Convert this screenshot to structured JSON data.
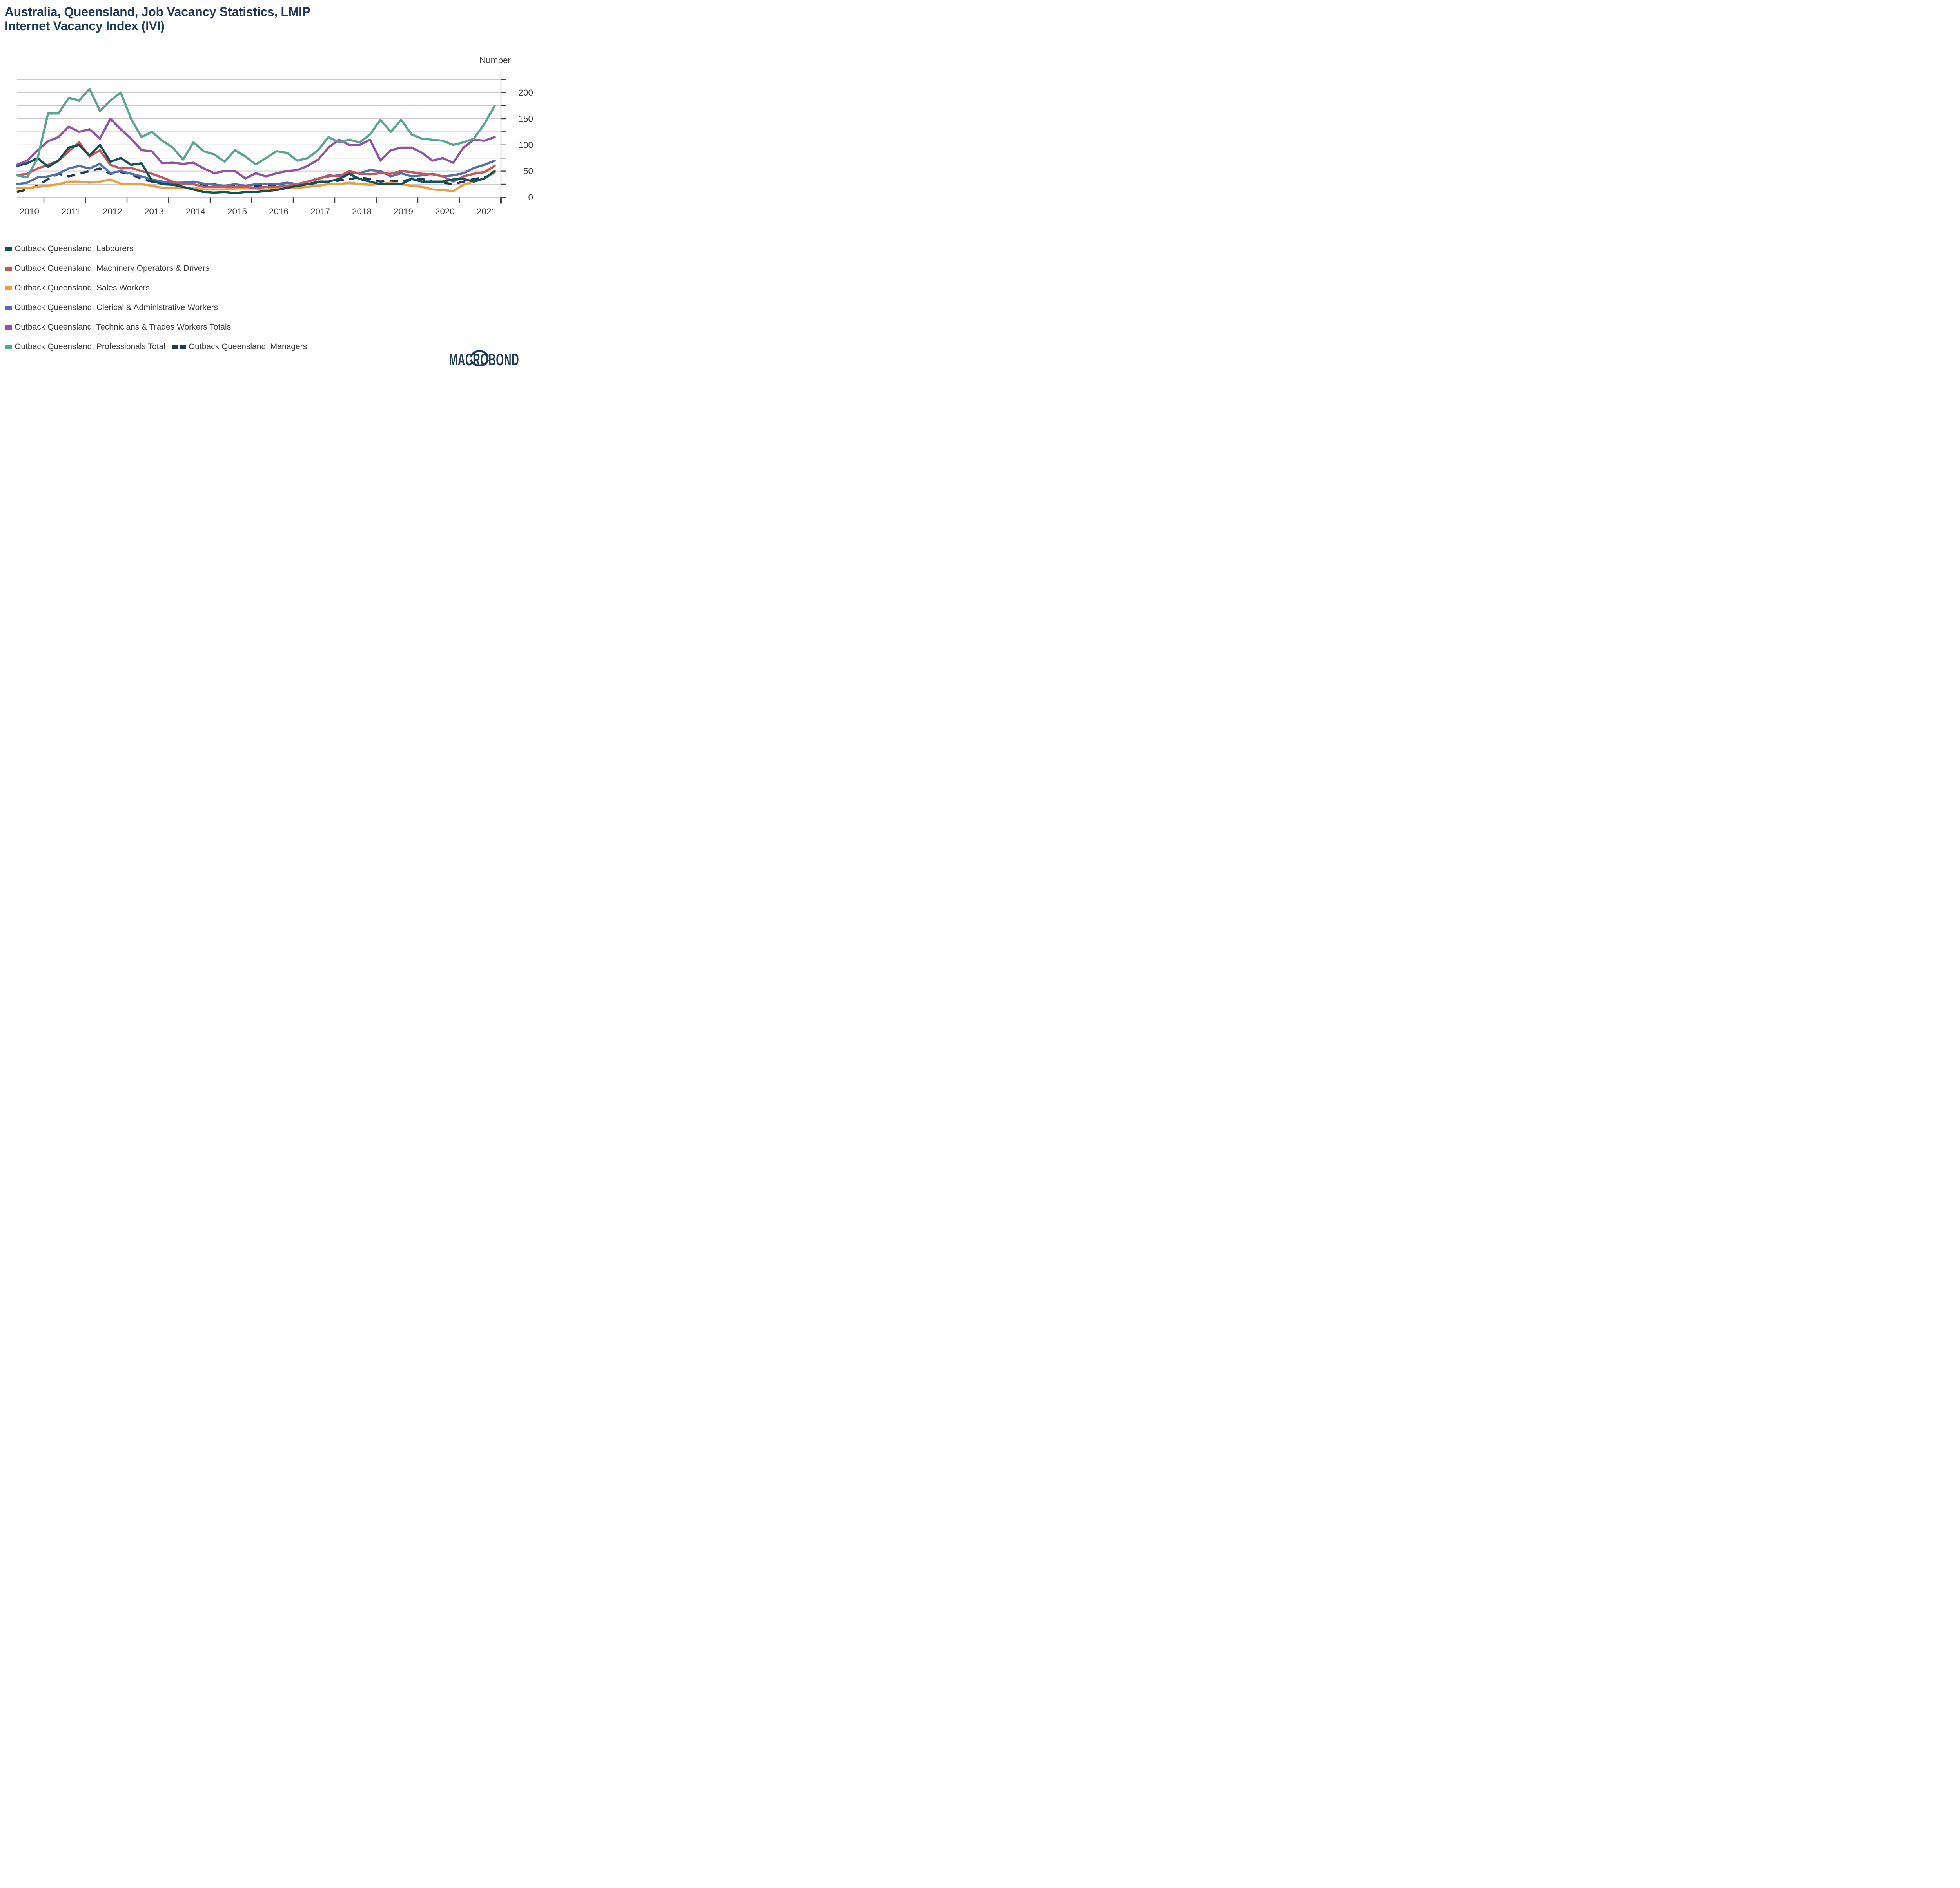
{
  "title": {
    "line1": "Australia, Queensland, Job Vacancy Statistics, LMIP",
    "line2": "Internet Vacancy Index (IVI)"
  },
  "branding": {
    "logo_text": "MACROBOND"
  },
  "chart_data": {
    "type": "line",
    "title": "Australia, Queensland, Job Vacancy Statistics, LMIP Internet Vacancy Index (IVI)",
    "unit_label": "Number",
    "ylim": [
      0,
      225
    ],
    "grid_step": 25,
    "y_tick_labels": [
      0,
      50,
      100,
      150,
      200
    ],
    "x_tick_years": [
      2010,
      2011,
      2012,
      2013,
      2014,
      2015,
      2016,
      2017,
      2018,
      2019,
      2020,
      2021
    ],
    "x_start": 2009.75,
    "x_step": 0.25,
    "legend_position": "bottom",
    "grid": true,
    "colors": {
      "title_navy": "#1d3a5e",
      "axis_text": "#3d3d3d",
      "gridline": "#c9c9c9",
      "axis_line": "#b3b3b3",
      "tick": "#3f3f3f"
    },
    "series": [
      {
        "name": "Outback Queensland, Labourers",
        "color": "#0e5356",
        "dashed": false,
        "values": [
          60,
          65,
          75,
          58,
          70,
          95,
          100,
          80,
          100,
          68,
          75,
          62,
          65,
          32,
          25,
          24,
          20,
          15,
          10,
          9,
          10,
          8,
          10,
          10,
          12,
          14,
          18,
          22,
          25,
          30,
          30,
          35,
          45,
          35,
          30,
          25,
          26,
          25,
          35,
          30,
          30,
          30,
          34,
          35,
          30,
          36,
          50
        ]
      },
      {
        "name": "Outback Queensland, Machinery Operators & Drivers",
        "color": "#c9545e",
        "dashed": false,
        "values": [
          42,
          45,
          55,
          62,
          70,
          88,
          105,
          78,
          90,
          62,
          55,
          56,
          50,
          45,
          38,
          30,
          25,
          25,
          20,
          20,
          20,
          20,
          20,
          18,
          20,
          20,
          22,
          25,
          30,
          35,
          42,
          40,
          50,
          45,
          44,
          46,
          45,
          50,
          48,
          45,
          44,
          40,
          30,
          40,
          45,
          48,
          60
        ]
      },
      {
        "name": "Outback Queensland, Sales Workers",
        "color": "#f59b3d",
        "dashed": false,
        "values": [
          17,
          18,
          20,
          22,
          25,
          30,
          30,
          28,
          30,
          34,
          26,
          25,
          25,
          22,
          18,
          18,
          18,
          18,
          15,
          15,
          15,
          17,
          17,
          17,
          15,
          17,
          18,
          18,
          20,
          22,
          25,
          25,
          28,
          25,
          24,
          25,
          28,
          25,
          22,
          20,
          15,
          14,
          12,
          24,
          30,
          36,
          47
        ]
      },
      {
        "name": "Outback Queensland, Clerical & Administrative Workers",
        "color": "#5170b0",
        "dashed": false,
        "values": [
          25,
          28,
          38,
          40,
          45,
          55,
          60,
          55,
          64,
          46,
          50,
          45,
          40,
          34,
          30,
          28,
          28,
          30,
          26,
          24,
          22,
          25,
          22,
          25,
          25,
          25,
          28,
          25,
          30,
          36,
          40,
          42,
          46,
          46,
          52,
          50,
          40,
          46,
          40,
          42,
          45,
          40,
          42,
          46,
          56,
          62,
          70
        ]
      },
      {
        "name": "Outback Queensland, Technicians & Trades Workers Totals",
        "color": "#9153a8",
        "dashed": false,
        "values": [
          62,
          70,
          90,
          107,
          115,
          135,
          125,
          130,
          112,
          150,
          130,
          112,
          90,
          88,
          65,
          66,
          64,
          66,
          55,
          46,
          50,
          50,
          36,
          46,
          40,
          46,
          50,
          52,
          60,
          72,
          95,
          110,
          100,
          100,
          110,
          70,
          90,
          95,
          95,
          85,
          70,
          75,
          66,
          95,
          110,
          108,
          115
        ]
      },
      {
        "name": "Outback Queensland, Professionals Total",
        "color": "#5ba492",
        "dashed": false,
        "values": [
          42,
          38,
          75,
          160,
          160,
          190,
          185,
          207,
          165,
          185,
          200,
          150,
          115,
          125,
          108,
          95,
          72,
          105,
          88,
          82,
          68,
          90,
          78,
          63,
          75,
          88,
          85,
          70,
          75,
          90,
          115,
          105,
          110,
          105,
          120,
          148,
          125,
          148,
          120,
          112,
          110,
          108,
          100,
          105,
          112,
          140,
          175
        ]
      },
      {
        "name": "Outback Queensland, Managers",
        "color": "#1f3a60",
        "dashed": true,
        "values": [
          10,
          15,
          22,
          35,
          45,
          40,
          45,
          50,
          55,
          45,
          48,
          44,
          35,
          30,
          28,
          25,
          25,
          28,
          22,
          25,
          20,
          22,
          20,
          22,
          22,
          24,
          22,
          20,
          25,
          28,
          30,
          32,
          35,
          38,
          35,
          30,
          32,
          30,
          35,
          35,
          30,
          28,
          25,
          30,
          35,
          38,
          45
        ]
      }
    ]
  }
}
